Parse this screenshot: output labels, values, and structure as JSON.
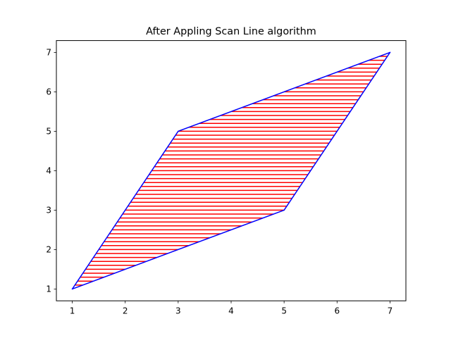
{
  "chart_data": {
    "type": "line",
    "title": "After Appling Scan Line algorithm",
    "xlabel": "",
    "ylabel": "",
    "xlim": [
      0.7,
      7.3
    ],
    "ylim": [
      0.7,
      7.3
    ],
    "x_ticks": [
      "1",
      "2",
      "3",
      "4",
      "5",
      "6",
      "7"
    ],
    "y_ticks": [
      "1",
      "2",
      "3",
      "4",
      "5",
      "6",
      "7"
    ],
    "grid": false,
    "polygon": {
      "x": [
        1,
        3,
        7,
        5,
        1
      ],
      "y": [
        1,
        5,
        7,
        3,
        1
      ],
      "edge_color": "#0000ff"
    },
    "scan_lines": {
      "y_start": 1.0,
      "y_end": 7.0,
      "step": 0.1,
      "color": "#ff0000"
    }
  }
}
